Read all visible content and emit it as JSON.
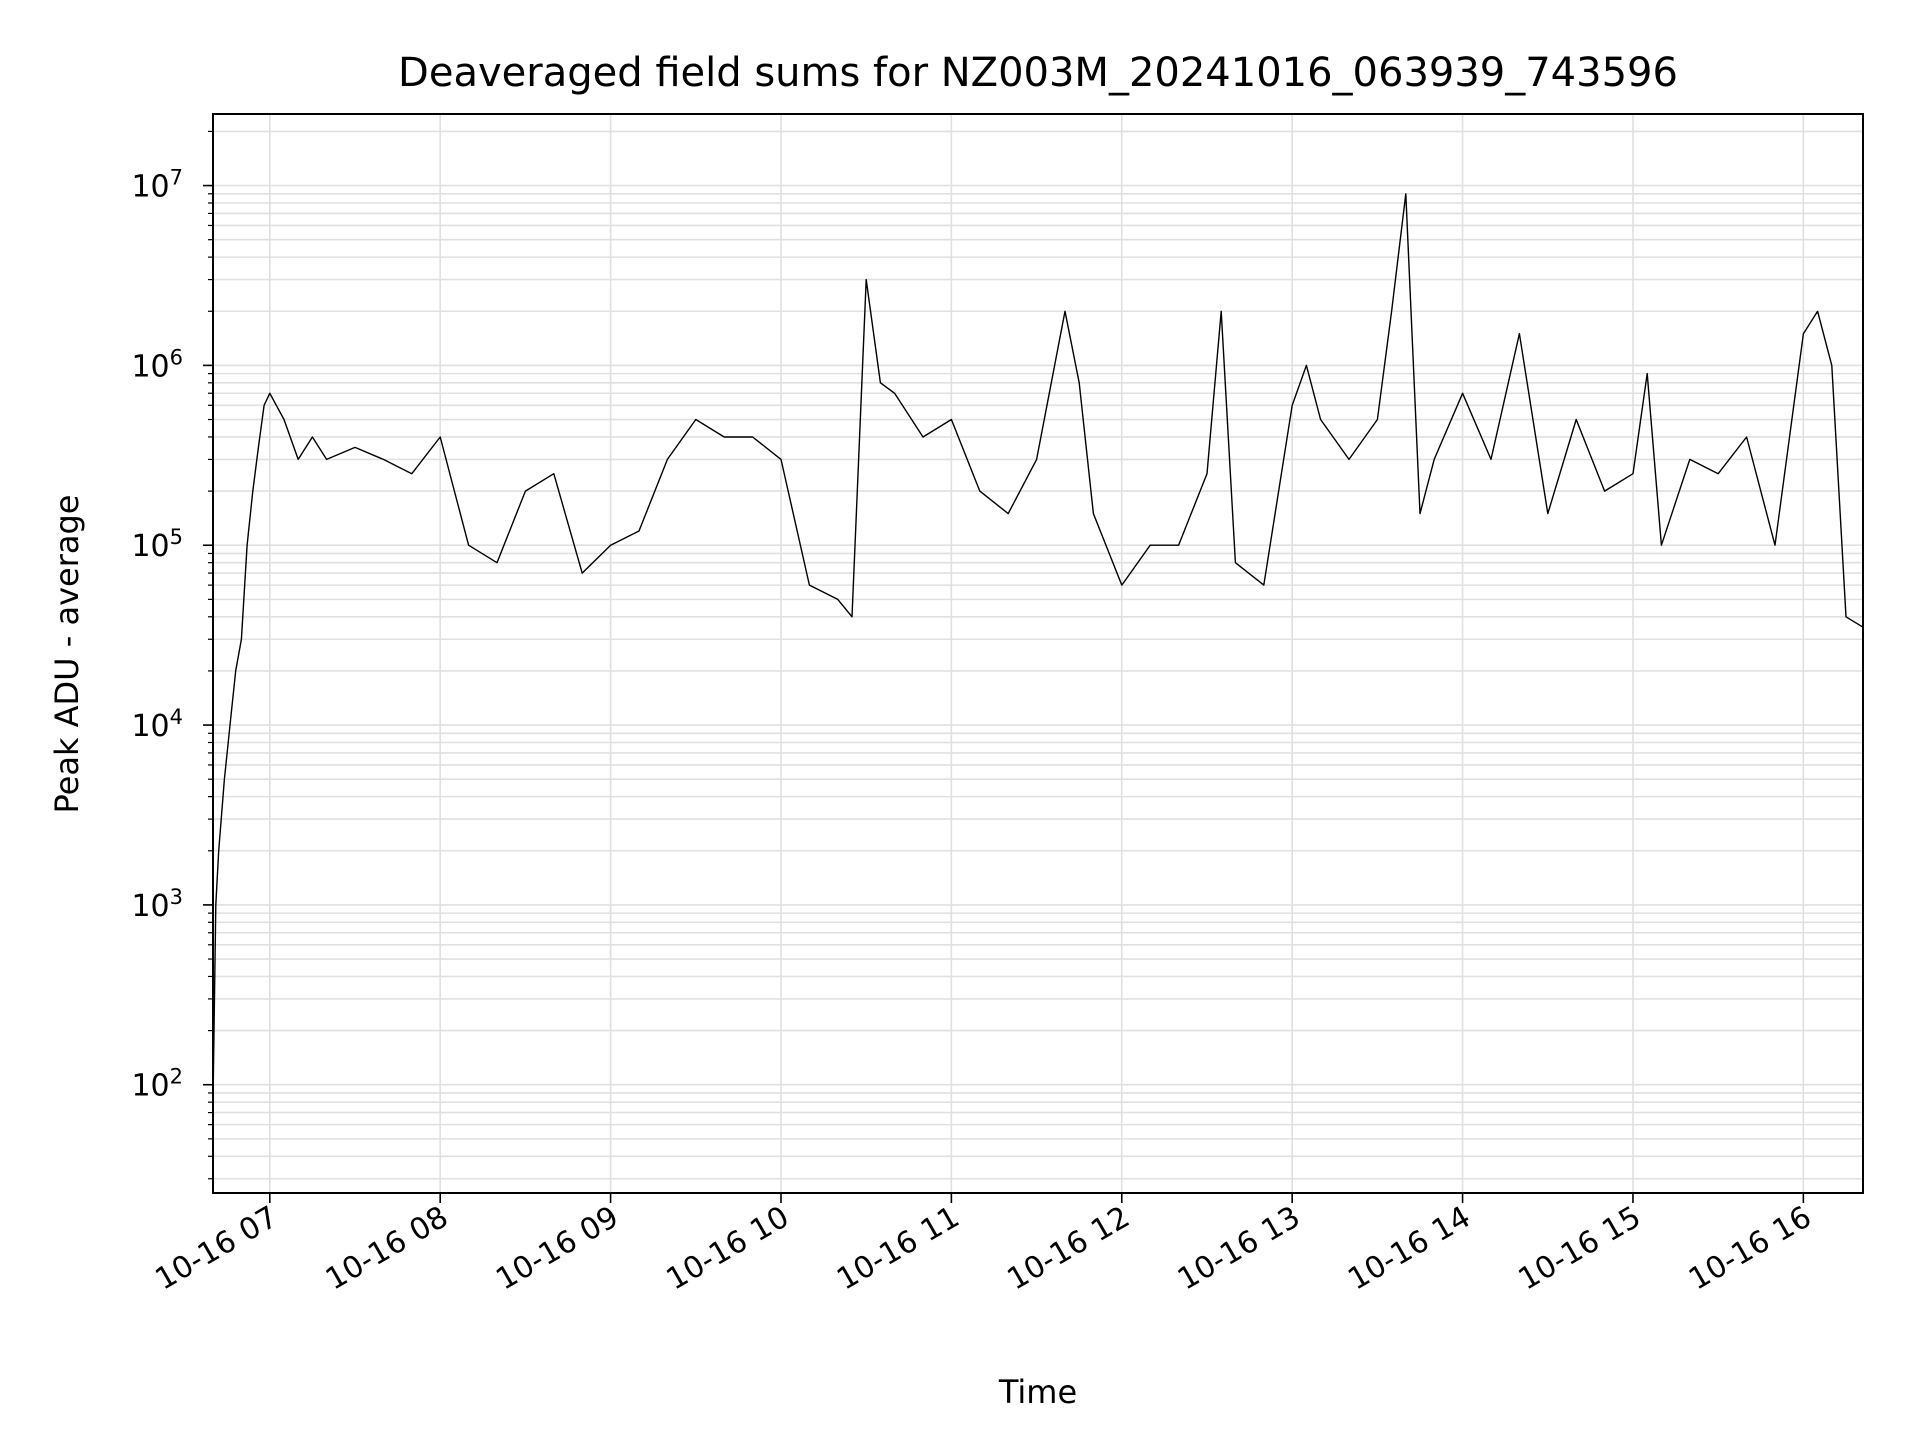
{
  "chart_data": {
    "type": "line",
    "title": "Deaveraged field sums for NZ003M_20241016_063939_743596",
    "xlabel": "Time",
    "ylabel": "Peak ADU - average",
    "yscale": "log",
    "grid": true,
    "line_color": "#000000",
    "grid_color": "#e0e0e0",
    "xlim": [
      "10-16 06:40",
      "10-16 16:21"
    ],
    "ylim": [
      25,
      25000000
    ],
    "xticks": [
      "10-16 07",
      "10-16 08",
      "10-16 09",
      "10-16 10",
      "10-16 11",
      "10-16 12",
      "10-16 13",
      "10-16 14",
      "10-16 15",
      "10-16 16"
    ],
    "yticks": [
      {
        "base": "10",
        "exp": "2",
        "value": 100
      },
      {
        "base": "10",
        "exp": "3",
        "value": 1000
      },
      {
        "base": "10",
        "exp": "4",
        "value": 10000
      },
      {
        "base": "10",
        "exp": "5",
        "value": 100000
      },
      {
        "base": "10",
        "exp": "6",
        "value": 1000000
      },
      {
        "base": "10",
        "exp": "7",
        "value": 10000000
      }
    ],
    "series": [
      {
        "x": [
          "10-16 06:40",
          "10-16 06:41",
          "10-16 06:42",
          "10-16 06:44",
          "10-16 06:46",
          "10-16 06:48",
          "10-16 06:50",
          "10-16 06:52",
          "10-16 06:54",
          "10-16 06:56",
          "10-16 06:58",
          "10-16 07:00",
          "10-16 07:05",
          "10-16 07:10",
          "10-16 07:15",
          "10-16 07:20",
          "10-16 07:30",
          "10-16 07:40",
          "10-16 07:50",
          "10-16 08:00",
          "10-16 08:10",
          "10-16 08:20",
          "10-16 08:30",
          "10-16 08:40",
          "10-16 08:50",
          "10-16 09:00",
          "10-16 09:10",
          "10-16 09:20",
          "10-16 09:30",
          "10-16 09:40",
          "10-16 09:50",
          "10-16 10:00",
          "10-16 10:10",
          "10-16 10:20",
          "10-16 10:25",
          "10-16 10:30",
          "10-16 10:35",
          "10-16 10:40",
          "10-16 10:50",
          "10-16 11:00",
          "10-16 11:10",
          "10-16 11:20",
          "10-16 11:30",
          "10-16 11:40",
          "10-16 11:45",
          "10-16 11:50",
          "10-16 12:00",
          "10-16 12:10",
          "10-16 12:20",
          "10-16 12:30",
          "10-16 12:35",
          "10-16 12:40",
          "10-16 12:50",
          "10-16 13:00",
          "10-16 13:05",
          "10-16 13:10",
          "10-16 13:20",
          "10-16 13:30",
          "10-16 13:35",
          "10-16 13:40",
          "10-16 13:45",
          "10-16 13:50",
          "10-16 14:00",
          "10-16 14:10",
          "10-16 14:20",
          "10-16 14:30",
          "10-16 14:40",
          "10-16 14:50",
          "10-16 15:00",
          "10-16 15:05",
          "10-16 15:10",
          "10-16 15:20",
          "10-16 15:30",
          "10-16 15:40",
          "10-16 15:50",
          "10-16 16:00",
          "10-16 16:05",
          "10-16 16:10",
          "10-16 16:15",
          "10-16 16:21"
        ],
        "y": [
          80,
          1000,
          2000,
          5000,
          10000,
          20000,
          30000,
          100000,
          200000,
          350000,
          600000,
          700000,
          500000,
          300000,
          400000,
          300000,
          350000,
          300000,
          250000,
          400000,
          100000,
          80000,
          200000,
          250000,
          70000,
          100000,
          120000,
          300000,
          500000,
          400000,
          400000,
          300000,
          60000,
          50000,
          40000,
          3000000,
          800000,
          700000,
          400000,
          500000,
          200000,
          150000,
          300000,
          2000000,
          800000,
          150000,
          60000,
          100000,
          100000,
          250000,
          2000000,
          80000,
          60000,
          600000,
          1000000,
          500000,
          300000,
          500000,
          2000000,
          9000000,
          150000,
          300000,
          700000,
          300000,
          1500000,
          150000,
          500000,
          200000,
          250000,
          900000,
          100000,
          300000,
          250000,
          400000,
          100000,
          1500000,
          2000000,
          1000000,
          40000,
          35000
        ]
      }
    ]
  }
}
